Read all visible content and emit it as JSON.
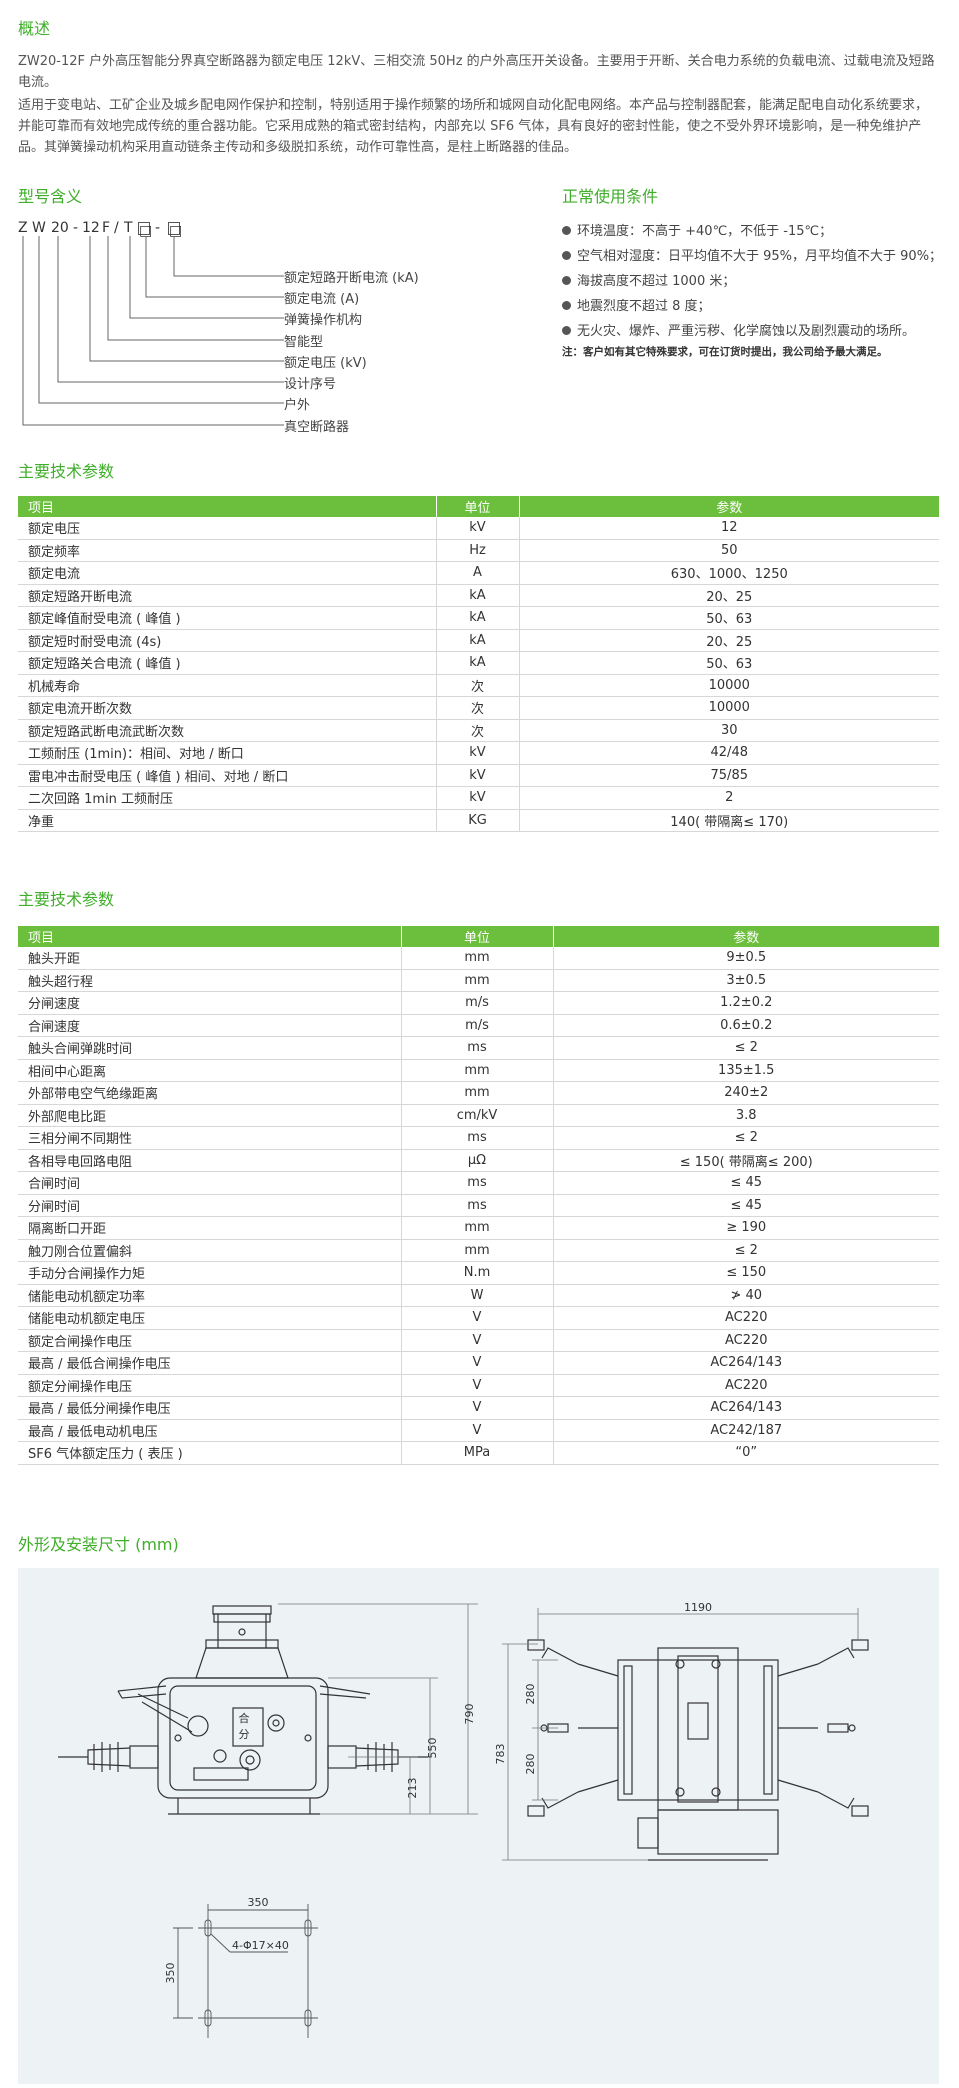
{
  "overview": {
    "title": "概述",
    "p1": "ZW20-12F 户外高压智能分界真空断路器为额定电压 12kV、三相交流 50Hz 的户外高压开关设备。主要用于开断、关合电力系统的负载电流、过载电流及短路电流。",
    "p2": "适用于变电站、工矿企业及城乡配电网作保护和控制，特别适用于操作频繁的场所和城网自动化配电网络。本产品与控制器配套，能满足配电自动化系统要求，并能可靠而有效地完成传统的重合器功能。它采用成熟的箱式密封结构，内部充以 SF6 气体，具有良好的密封性能，使之不受外界环境影响，是一种免维护产品。其弹簧操动机构采用直动链条主传动和多级脱扣系统，动作可靠性高，是柱上断路器的佳品。"
  },
  "model": {
    "title": "型号含义",
    "code": [
      "Z",
      "W",
      "20",
      "-",
      "12",
      "F",
      "/",
      "T",
      "□",
      "-",
      "□"
    ],
    "labels": [
      "额定短路开断电流 (kA)",
      "额定电流 (A)",
      "弹簧操作机构",
      "智能型",
      "额定电压 (kV)",
      "设计序号",
      "户外",
      "真空断路器"
    ]
  },
  "conditions": {
    "title": "正常使用条件",
    "items": [
      "环境温度：不高于 +40℃，不低于 -15℃；",
      "空气相对湿度：日平均值不大于 95%，月平均值不大于 90%；",
      "海拔高度不超过 1000 米；",
      "地震烈度不超过 8 度；",
      "无火灾、爆炸、严重污秽、化学腐蚀以及剧烈震动的场所。"
    ],
    "note": "注：客户如有其它特殊要求，可在订货时提出，我公司给予最大满足。"
  },
  "table1": {
    "title": "主要技术参数",
    "headers": [
      "项目",
      "单位",
      "参数"
    ],
    "rows": [
      [
        "额定电压",
        "kV",
        "12"
      ],
      [
        "额定频率",
        "Hz",
        "50"
      ],
      [
        "额定电流",
        "A",
        "630、1000、1250"
      ],
      [
        "额定短路开断电流",
        "kA",
        "20、25"
      ],
      [
        "额定峰值耐受电流 ( 峰值 )",
        "kA",
        "50、63"
      ],
      [
        "额定短时耐受电流 (4s)",
        "kA",
        "20、25"
      ],
      [
        "额定短路关合电流 ( 峰值 )",
        "kA",
        "50、63"
      ],
      [
        "机械寿命",
        "次",
        "10000"
      ],
      [
        "额定电流开断次数",
        "次",
        "10000"
      ],
      [
        "额定短路武断电流武断次数",
        "次",
        "30"
      ],
      [
        "工频耐压 (1min)：相间、对地 / 断口",
        "kV",
        "42/48"
      ],
      [
        "雷电冲击耐受电压 ( 峰值 ) 相间、对地 / 断口",
        "kV",
        "75/85"
      ],
      [
        "二次回路 1min 工频耐压",
        "kV",
        "2"
      ],
      [
        "净重",
        "KG",
        "140( 带隔离≤ 170)"
      ]
    ]
  },
  "table2": {
    "title": "主要技术参数",
    "headers": [
      "项目",
      "单位",
      "参数"
    ],
    "rows": [
      [
        "触头开距",
        "mm",
        "9±0.5"
      ],
      [
        "触头超行程",
        "mm",
        "3±0.5"
      ],
      [
        "分闸速度",
        "m/s",
        "1.2±0.2"
      ],
      [
        "合闸速度",
        "m/s",
        "0.6±0.2"
      ],
      [
        "触头合闸弹跳时间",
        "ms",
        "≤ 2"
      ],
      [
        "相间中心距离",
        "mm",
        "135±1.5"
      ],
      [
        "外部带电空气绝缘距离",
        "mm",
        "240±2"
      ],
      [
        "外部爬电比距",
        "cm/kV",
        "3.8"
      ],
      [
        "三相分闸不同期性",
        "ms",
        "≤ 2"
      ],
      [
        "各相导电回路电阻",
        "μΩ",
        "≤ 150( 带隔离≤ 200)"
      ],
      [
        "合闸时间",
        "ms",
        "≤ 45"
      ],
      [
        "分闸时间",
        "ms",
        "≤ 45"
      ],
      [
        "隔离断口开距",
        "mm",
        "≥ 190"
      ],
      [
        "触刀刚合位置偏斜",
        "mm",
        "≤ 2"
      ],
      [
        "手动分合闸操作力矩",
        "N.m",
        "≤ 150"
      ],
      [
        "储能电动机额定功率",
        "W",
        "≯ 40"
      ],
      [
        "储能电动机额定电压",
        "V",
        "AC220"
      ],
      [
        "额定合闸操作电压",
        "V",
        "AC220"
      ],
      [
        "最高 / 最低合闸操作电压",
        "V",
        "AC264/143"
      ],
      [
        "额定分闸操作电压",
        "V",
        "AC220"
      ],
      [
        "最高 / 最低分闸操作电压",
        "V",
        "AC264/143"
      ],
      [
        "最高 / 最低电动机电压",
        "V",
        "AC242/187"
      ],
      [
        "SF6 气体额定压力 ( 表压 )",
        "MPa",
        "“0”"
      ]
    ]
  },
  "dimensions": {
    "title": "外形及安装尺寸 (mm)",
    "front": {
      "h_total": "790",
      "h_mid": "550",
      "h_low": "213",
      "panel_text1": "合",
      "panel_text2": "分"
    },
    "side": {
      "width": "1190",
      "height": "783",
      "pitch1": "280",
      "pitch2": "280"
    },
    "mount": {
      "w": "350",
      "h": "350",
      "holes": "4-Φ17×40"
    }
  }
}
